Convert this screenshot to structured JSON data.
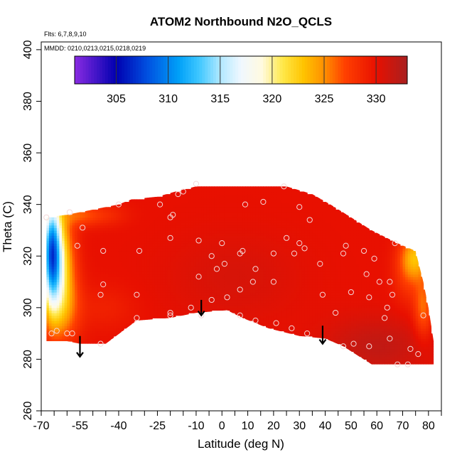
{
  "chart_data": {
    "type": "heatmap",
    "title": "ATOM2 Northbound N2O_QCLS",
    "notes": [
      "Flts: 6,7,8,9,10",
      "MMDD: 0210,0213,0215,0218,0219"
    ],
    "xlabel": "Latitude (deg N)",
    "ylabel": "Theta (C)",
    "xlim": [
      -70,
      85
    ],
    "ylim": [
      260,
      403
    ],
    "x_ticks": [
      -70,
      -55,
      -40,
      -25,
      -10,
      0,
      10,
      20,
      30,
      40,
      50,
      60,
      70,
      80
    ],
    "x_minor_ticks": [
      -65,
      -60,
      -50,
      -45,
      -35,
      -30,
      -20,
      -15,
      -5,
      5,
      15,
      25,
      35,
      45,
      55,
      65,
      75,
      85
    ],
    "y_ticks": [
      260,
      280,
      300,
      320,
      340,
      360,
      380,
      400
    ],
    "colorbar": {
      "min": 301,
      "max": 333,
      "ticks": [
        305,
        310,
        315,
        320,
        325,
        330
      ],
      "stops": [
        {
          "v": 301,
          "c": "#8a2be2"
        },
        {
          "v": 305,
          "c": "#0000b0"
        },
        {
          "v": 308,
          "c": "#0050e0"
        },
        {
          "v": 311,
          "c": "#00a0f8"
        },
        {
          "v": 313,
          "c": "#40c8ff"
        },
        {
          "v": 315,
          "c": "#b0e8ff"
        },
        {
          "v": 317,
          "c": "#f0f8ff"
        },
        {
          "v": 319,
          "c": "#fffae0"
        },
        {
          "v": 321,
          "c": "#ffe84a"
        },
        {
          "v": 323,
          "c": "#ffc400"
        },
        {
          "v": 325,
          "c": "#ff9000"
        },
        {
          "v": 327,
          "c": "#ff4000"
        },
        {
          "v": 330,
          "c": "#e81000"
        },
        {
          "v": 333,
          "c": "#a82020"
        }
      ]
    },
    "field": {
      "base_value": 330,
      "outline": [
        [
          -68,
          290
        ],
        [
          -68,
          335
        ],
        [
          -60,
          336
        ],
        [
          -55,
          337
        ],
        [
          -45,
          339
        ],
        [
          -40,
          340
        ],
        [
          -35,
          342
        ],
        [
          -25,
          343
        ],
        [
          -18,
          345
        ],
        [
          -10,
          347
        ],
        [
          0,
          347.5
        ],
        [
          10,
          347.5
        ],
        [
          25,
          347
        ],
        [
          35,
          344
        ],
        [
          42,
          340
        ],
        [
          50,
          335
        ],
        [
          58,
          330
        ],
        [
          68,
          325
        ],
        [
          75,
          322
        ],
        [
          78,
          310
        ],
        [
          80,
          300
        ],
        [
          82,
          287
        ],
        [
          82,
          278
        ],
        [
          58,
          278
        ],
        [
          47,
          285
        ],
        [
          40,
          288
        ],
        [
          30,
          289
        ],
        [
          18,
          292
        ],
        [
          8,
          296
        ],
        [
          2,
          299
        ],
        [
          -10,
          298
        ],
        [
          -20,
          296
        ],
        [
          -33,
          295
        ],
        [
          -45,
          286
        ],
        [
          -55,
          286
        ],
        [
          -60,
          287
        ],
        [
          -68,
          287
        ]
      ],
      "features": [
        {
          "x": -66,
          "y": 322,
          "sx": 2.5,
          "sy": 14,
          "a": -17
        },
        {
          "x": -63,
          "y": 318,
          "sx": 4,
          "sy": 14,
          "a": -8
        },
        {
          "x": -62,
          "y": 300,
          "sx": 5,
          "sy": 10,
          "a": -4
        },
        {
          "x": -55,
          "y": 336,
          "sx": 5,
          "sy": 3,
          "a": -3
        },
        {
          "x": -45,
          "y": 336,
          "sx": 6,
          "sy": 3,
          "a": -1.5
        },
        {
          "x": 75,
          "y": 320,
          "sx": 4,
          "sy": 6,
          "a": -6
        },
        {
          "x": 78,
          "y": 300,
          "sx": 2.5,
          "sy": 8,
          "a": -4
        },
        {
          "x": 72,
          "y": 312,
          "sx": 4,
          "sy": 8,
          "a": -2
        },
        {
          "x": 60,
          "y": 285,
          "sx": 14,
          "sy": 8,
          "a": 1.8
        },
        {
          "x": 5,
          "y": 312,
          "sx": 18,
          "sy": 12,
          "a": 0.8
        },
        {
          "x": -45,
          "y": 300,
          "sx": 8,
          "sy": 6,
          "a": -1
        }
      ]
    },
    "points": [
      [
        -68,
        335
      ],
      [
        -59,
        337
      ],
      [
        -56,
        324
      ],
      [
        -54,
        331
      ],
      [
        -46,
        322
      ],
      [
        -46,
        309
      ],
      [
        -47,
        305
      ],
      [
        -47,
        286
      ],
      [
        -40,
        340
      ],
      [
        -32,
        322
      ],
      [
        -33,
        305
      ],
      [
        -33,
        296
      ],
      [
        -24,
        340
      ],
      [
        -20,
        327
      ],
      [
        -20,
        335
      ],
      [
        -19,
        336
      ],
      [
        -17,
        344
      ],
      [
        -15,
        345
      ],
      [
        -10,
        348
      ],
      [
        -9,
        326
      ],
      [
        -9,
        312
      ],
      [
        -4,
        320
      ],
      [
        -2,
        315
      ],
      [
        0,
        325
      ],
      [
        1,
        317
      ],
      [
        2,
        304
      ],
      [
        -4,
        303
      ],
      [
        -20,
        298
      ],
      [
        -20,
        297
      ],
      [
        7,
        321
      ],
      [
        8,
        322
      ],
      [
        7,
        307
      ],
      [
        7,
        297
      ],
      [
        9,
        340
      ],
      [
        12,
        310
      ],
      [
        13,
        315
      ],
      [
        13,
        295
      ],
      [
        16,
        341
      ],
      [
        20,
        321
      ],
      [
        20,
        310
      ],
      [
        21,
        294
      ],
      [
        24,
        347
      ],
      [
        25,
        327
      ],
      [
        28,
        321
      ],
      [
        30,
        339
      ],
      [
        30,
        325
      ],
      [
        32,
        323
      ],
      [
        27,
        292
      ],
      [
        34,
        334
      ],
      [
        38,
        317
      ],
      [
        39,
        305
      ],
      [
        33,
        290
      ],
      [
        47,
        321
      ],
      [
        48,
        324
      ],
      [
        50,
        306
      ],
      [
        47,
        285
      ],
      [
        51,
        286
      ],
      [
        55,
        322
      ],
      [
        56,
        313
      ],
      [
        57,
        304
      ],
      [
        57,
        285
      ],
      [
        59,
        319
      ],
      [
        61,
        310
      ],
      [
        63,
        296
      ],
      [
        64,
        300
      ],
      [
        65,
        310
      ],
      [
        66,
        305
      ],
      [
        65,
        288
      ],
      [
        67,
        325
      ],
      [
        68,
        278
      ],
      [
        72,
        278
      ],
      [
        73,
        284
      ],
      [
        76,
        282
      ],
      [
        78,
        297
      ],
      [
        -58,
        290
      ],
      [
        -64,
        291
      ],
      [
        -66,
        290
      ],
      [
        -60,
        290
      ],
      [
        -12,
        300
      ],
      [
        -8,
        297
      ],
      [
        44,
        298
      ]
    ],
    "arrows": [
      {
        "x": -55,
        "y_top": 289,
        "y_bottom": 281
      },
      {
        "x": -8,
        "y_top": 303,
        "y_bottom": 297
      },
      {
        "x": 39,
        "y_top": 293,
        "y_bottom": 286
      }
    ]
  }
}
